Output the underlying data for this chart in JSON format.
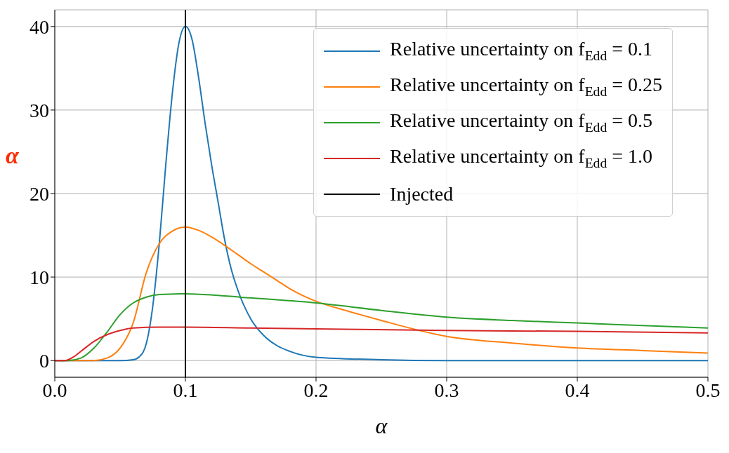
{
  "chart_data": {
    "type": "line",
    "xlabel": "α",
    "ylabel": "α",
    "xlim": [
      0,
      0.5
    ],
    "ylim": [
      -2,
      42
    ],
    "xticks": [
      {
        "value": 0,
        "label": "0.0"
      },
      {
        "value": 0.1,
        "label": "0.1"
      },
      {
        "value": 0.2,
        "label": "0.2"
      },
      {
        "value": 0.3,
        "label": "0.3"
      },
      {
        "value": 0.4,
        "label": "0.4"
      },
      {
        "value": 0.5,
        "label": "0.5"
      }
    ],
    "yticks": [
      0,
      10,
      20,
      30,
      40
    ],
    "grid": true,
    "legend": "top right",
    "marker": "none",
    "line_style": "solid",
    "series": [
      {
        "name": "Relative uncertainty on f$_{Edd}$ = 0.1",
        "color": "#1f77b4",
        "x": [
          0,
          0.05,
          0.06,
          0.065,
          0.07,
          0.075,
          0.08,
          0.085,
          0.09,
          0.095,
          0.1,
          0.105,
          0.11,
          0.115,
          0.12,
          0.125,
          0.13,
          0.135,
          0.14,
          0.15,
          0.16,
          0.17,
          0.18,
          0.2,
          0.25,
          0.3,
          0.5
        ],
        "values": [
          0,
          0,
          0.1,
          0.5,
          2,
          6.5,
          14,
          23.5,
          32,
          38,
          40,
          38.5,
          34,
          28.5,
          23.5,
          19,
          14.5,
          11,
          8.5,
          5,
          3,
          1.8,
          1.1,
          0.4,
          0.1,
          0,
          0
        ]
      },
      {
        "name": "Relative uncertainty on f$_{Edd}$ = 0.25",
        "color": "#ff7f0e",
        "x": [
          0,
          0.03,
          0.04,
          0.05,
          0.06,
          0.07,
          0.08,
          0.09,
          0.1,
          0.11,
          0.12,
          0.13,
          0.14,
          0.15,
          0.16,
          0.17,
          0.18,
          0.2,
          0.225,
          0.25,
          0.3,
          0.35,
          0.4,
          0.45,
          0.5
        ],
        "values": [
          0,
          0,
          0.3,
          1.5,
          4.5,
          10.5,
          14,
          15.5,
          16,
          15.6,
          14.8,
          13.8,
          12.7,
          11.6,
          10.6,
          9.6,
          8.6,
          7.1,
          5.9,
          4.8,
          2.9,
          2.1,
          1.5,
          1.2,
          0.9
        ]
      },
      {
        "name": "Relative uncertainty on f$_{Edd}$ = 0.5",
        "color": "#2ca02c",
        "x": [
          0,
          0.01,
          0.02,
          0.03,
          0.04,
          0.05,
          0.06,
          0.07,
          0.08,
          0.1,
          0.125,
          0.15,
          0.2,
          0.25,
          0.3,
          0.35,
          0.4,
          0.45,
          0.5
        ],
        "values": [
          0,
          0,
          0.3,
          1.5,
          3.4,
          5.5,
          6.9,
          7.6,
          7.9,
          8,
          7.8,
          7.5,
          6.9,
          6,
          5.2,
          4.8,
          4.5,
          4.2,
          3.9
        ]
      },
      {
        "name": "Relative uncertainty on f$_{Edd}$ = 1.0",
        "color": "#d62728",
        "x": [
          0,
          0.008,
          0.015,
          0.02,
          0.03,
          0.04,
          0.05,
          0.06,
          0.08,
          0.1,
          0.15,
          0.2,
          0.3,
          0.4,
          0.5
        ],
        "values": [
          0,
          0,
          0.5,
          1.1,
          2.3,
          3.1,
          3.6,
          3.9,
          4,
          4,
          3.9,
          3.8,
          3.6,
          3.5,
          3.3
        ]
      },
      {
        "name": "Injected",
        "color": "#000000",
        "x": [
          0.1,
          0.1
        ],
        "values": [
          -2,
          42
        ]
      }
    ]
  }
}
